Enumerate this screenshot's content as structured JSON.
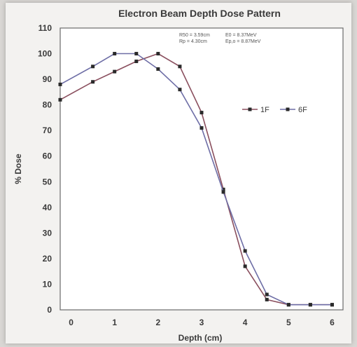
{
  "chart_data": {
    "type": "line",
    "title": "Electron Beam Depth Dose Pattern",
    "xlabel": "Depth (cm)",
    "ylabel": "% Dose",
    "xlim": [
      -0.25,
      6.25
    ],
    "ylim": [
      0,
      110
    ],
    "x_ticks": [
      "0",
      "1",
      "2",
      "3",
      "4",
      "5",
      "6"
    ],
    "y_ticks": [
      "0",
      "10",
      "20",
      "30",
      "40",
      "50",
      "60",
      "70",
      "80",
      "90",
      "100",
      "110"
    ],
    "grid": false,
    "legend_position": "right",
    "annotations": {
      "line1_left": "R50 = 3.59cm",
      "line1_right": "E0   = 8.37MeV",
      "line2_left": "Rp = 4.30cm",
      "line2_right": "Ep,o = 8.87MeV"
    },
    "series": [
      {
        "name": "1F",
        "color": "#8a4f5e",
        "x": [
          -0.25,
          0.5,
          1,
          1.5,
          2,
          2.5,
          3,
          3.5,
          4,
          4.5,
          5,
          5.5,
          6
        ],
        "values": [
          82,
          89,
          93,
          97,
          100,
          95,
          77,
          47,
          17,
          4,
          2,
          2,
          2
        ]
      },
      {
        "name": "6F",
        "color": "#6e6ea6",
        "x": [
          -0.25,
          0.5,
          1,
          1.5,
          2,
          2.5,
          3,
          3.5,
          4,
          4.5,
          5,
          5.5,
          6
        ],
        "values": [
          88,
          95,
          100,
          100,
          94,
          86,
          71,
          46,
          23,
          6,
          2,
          2,
          2
        ]
      }
    ]
  }
}
